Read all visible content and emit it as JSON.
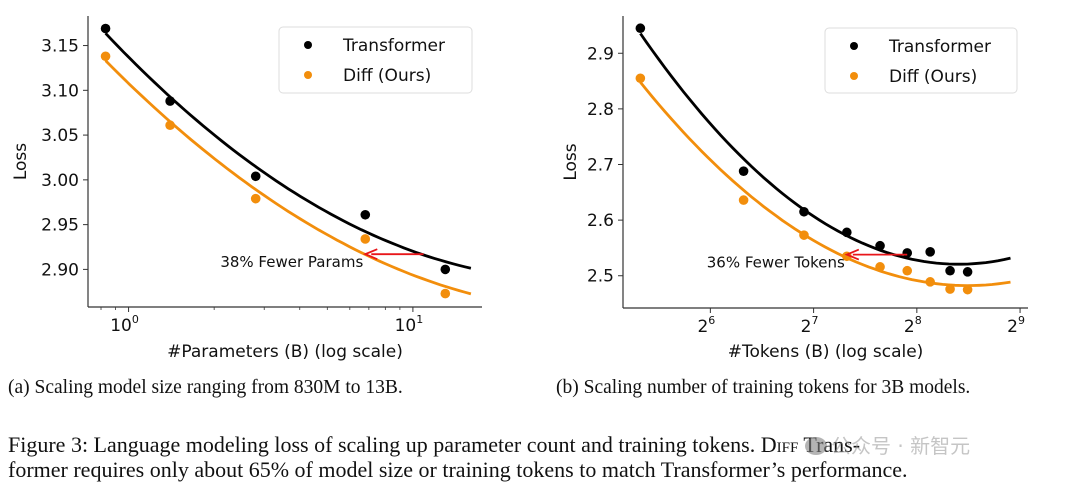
{
  "colors": {
    "transformer": "#000000",
    "diff": "#F28E0C",
    "arrow": "#E8161A",
    "axis": "#333333"
  },
  "chart_data": [
    {
      "type": "scatter",
      "panel": "a",
      "xscale": "log10",
      "xlabel": "#Parameters (B) (log scale)",
      "ylabel": "Loss",
      "xlim": [
        0.72,
        17.5
      ],
      "ylim": [
        2.858,
        3.183
      ],
      "xticks": [
        {
          "value": 1,
          "base": "10",
          "exp": "0"
        },
        {
          "value": 10,
          "base": "10",
          "exp": "1"
        }
      ],
      "yticks": [
        {
          "value": 3.15,
          "label": "3.15"
        },
        {
          "value": 3.1,
          "label": "3.10"
        },
        {
          "value": 3.05,
          "label": "3.05"
        },
        {
          "value": 3.0,
          "label": "3.00"
        },
        {
          "value": 2.95,
          "label": "2.95"
        },
        {
          "value": 2.9,
          "label": "2.90"
        }
      ],
      "grid": false,
      "legend_position": "top-right",
      "series": [
        {
          "name": "Transformer",
          "color_key": "transformer",
          "x": [
            0.83,
            1.4,
            2.8,
            6.8,
            13.0
          ],
          "y": [
            3.169,
            3.088,
            3.004,
            2.961,
            2.9
          ],
          "fit": {
            "x_range": [
              0.83,
              16.0
            ],
            "y_at": [
              3.169,
              3.089,
              3.01,
              2.945,
              2.903
            ]
          }
        },
        {
          "name": "Diff (Ours)",
          "color_key": "diff",
          "x": [
            0.83,
            1.4,
            2.8,
            6.8,
            13.0
          ],
          "y": [
            3.138,
            3.061,
            2.979,
            2.934,
            2.873
          ],
          "fit": {
            "x_range": [
              0.83,
              16.0
            ],
            "y_at": [
              3.138,
              3.061,
              2.983,
              2.918,
              2.876
            ]
          }
        }
      ],
      "annotation": {
        "text": "38% Fewer Params",
        "arrow_from": [
          10.9,
          2.917
        ],
        "arrow_to": [
          6.8,
          2.917
        ]
      }
    },
    {
      "type": "scatter",
      "panel": "b",
      "xscale": "log2",
      "xlabel": "#Tokens (B) (log scale)",
      "ylabel": "Loss",
      "xlim": [
        35.6,
        540
      ],
      "ylim": [
        2.442,
        2.967
      ],
      "xticks": [
        {
          "value": 64,
          "base": "2",
          "exp": "6"
        },
        {
          "value": 128,
          "base": "2",
          "exp": "7"
        },
        {
          "value": 256,
          "base": "2",
          "exp": "8"
        },
        {
          "value": 512,
          "base": "2",
          "exp": "9"
        }
      ],
      "yticks": [
        {
          "value": 2.9,
          "label": "2.9"
        },
        {
          "value": 2.8,
          "label": "2.8"
        },
        {
          "value": 2.7,
          "label": "2.7"
        },
        {
          "value": 2.6,
          "label": "2.6"
        },
        {
          "value": 2.5,
          "label": "2.5"
        }
      ],
      "grid": false,
      "legend_position": "top-right",
      "series": [
        {
          "name": "Transformer",
          "color_key": "transformer",
          "x": [
            40,
            80,
            120,
            160,
            200,
            240,
            280,
            320,
            360
          ],
          "y": [
            2.945,
            2.688,
            2.615,
            2.578,
            2.554,
            2.541,
            2.543,
            2.509,
            2.507
          ],
          "fit": {
            "x_range": [
              40,
              480
            ]
          }
        },
        {
          "name": "Diff (Ours)",
          "color_key": "diff",
          "x": [
            40,
            80,
            120,
            160,
            200,
            240,
            280,
            320,
            360
          ],
          "y": [
            2.855,
            2.636,
            2.573,
            2.535,
            2.516,
            2.509,
            2.489,
            2.476,
            2.475
          ],
          "fit": {
            "x_range": [
              40,
              480
            ]
          }
        }
      ],
      "annotation": {
        "text": "36% Fewer Tokens",
        "arrow_from": [
          240,
          2.538
        ],
        "arrow_to": [
          160,
          2.538
        ]
      }
    }
  ],
  "subcaptions": {
    "a": "(a) Scaling model size ranging from 830M to 13B.",
    "b": "(b) Scaling number of training tokens for 3B models."
  },
  "caption": {
    "line1_pre": "Figure 3: Language modeling loss of scaling up parameter count and training tokens. ",
    "line1_sc": "Diff",
    "line1_post": " Trans-",
    "line2": "former requires only about 65% of model size or training tokens to match Transformer’s performance."
  },
  "watermark": "公众号 · 新智元"
}
